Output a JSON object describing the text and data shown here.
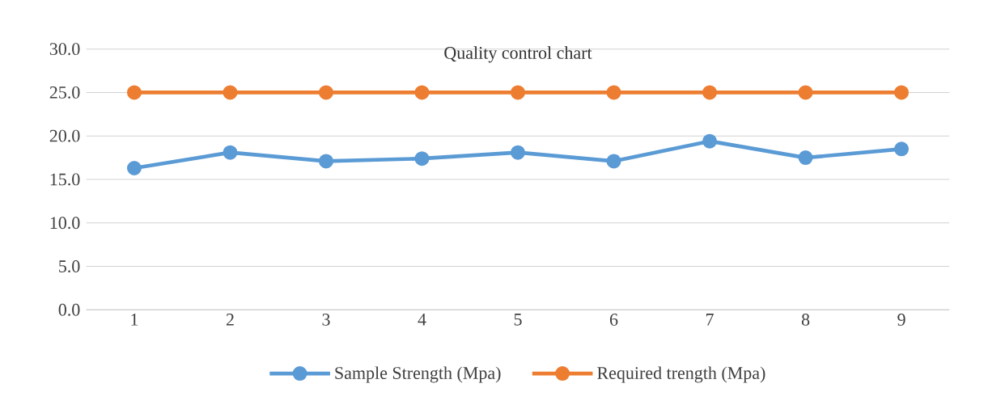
{
  "chart_data": {
    "type": "line",
    "title": "Quality control chart",
    "categories": [
      "1",
      "2",
      "3",
      "4",
      "5",
      "6",
      "7",
      "8",
      "9"
    ],
    "series": [
      {
        "name": "Sample Strength (Mpa)",
        "color": "#5b9bd5",
        "values": [
          16.3,
          18.1,
          17.1,
          17.4,
          18.1,
          17.1,
          19.4,
          17.5,
          18.5
        ]
      },
      {
        "name": "Required trength (Mpa)",
        "color": "#ed7d31",
        "values": [
          25,
          25,
          25,
          25,
          25,
          25,
          25,
          25,
          25
        ]
      }
    ],
    "ylim": [
      0,
      30
    ],
    "yticks": [
      {
        "value": 0,
        "label": "0.0"
      },
      {
        "value": 5,
        "label": "5.0"
      },
      {
        "value": 10,
        "label": "10.0"
      },
      {
        "value": 15,
        "label": "15.0"
      },
      {
        "value": 20,
        "label": "20.0"
      },
      {
        "value": 25,
        "label": "25.0"
      },
      {
        "value": 30,
        "label": "30.0"
      }
    ],
    "grid": "y",
    "legend": "bottom",
    "marker": "circle",
    "line_style": "solid"
  }
}
